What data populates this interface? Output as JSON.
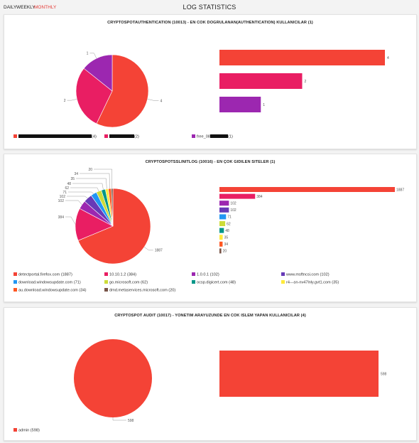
{
  "header": {
    "tabs": [
      {
        "label": "DAILY"
      },
      {
        "label": "WEEKLY"
      },
      {
        "label": "MONTHLY",
        "active": true
      }
    ],
    "title": "LOG STATISTICS"
  },
  "cards": [
    {
      "title": "CRYPTOSPOTAUTHENTICATION (10013) - EN COK DOGRULANAN(AUTHENTICATION) KULLANICILAR (1)",
      "legend": [
        {
          "suffix": "(4)",
          "color": "#f44336"
        },
        {
          "suffix": "(2)",
          "color": "#e91e63"
        },
        {
          "prefix": "free_08",
          "suffix": "(1)",
          "color": "#9c27b0"
        }
      ]
    },
    {
      "title": "CRYPTOSPOTSSLINITLOG (10016) - EN ÇOK GIDILEN SITELER (1)",
      "legend": [
        {
          "text": "detectportal.firefox.com (1887)",
          "color": "#f44336"
        },
        {
          "text": "10.10.1.2 (384)",
          "color": "#e91e63"
        },
        {
          "text": "1.0.0.1 (102)",
          "color": "#9c27b0"
        },
        {
          "text": "www.msftncsi.com (102)",
          "color": "#673ab7"
        },
        {
          "text": "download.windowsupdate.com (71)",
          "color": "#2196f3"
        },
        {
          "text": "go.microsoft.com (62)",
          "color": "#cddc39"
        },
        {
          "text": "ocsp.digicert.com (48)",
          "color": "#009688"
        },
        {
          "text": "r4---sn-nv47lnly.gvt1.com (35)",
          "color": "#ffeb3b"
        },
        {
          "text": "au.download.windowsupdate.com (34)",
          "color": "#ff5722"
        },
        {
          "text": "dmd.metaservices.microsoft.com (20)",
          "color": "#795548"
        }
      ]
    },
    {
      "title": "CRYPTOSPOT AUDIT (10017) - YONETIM ARAYUZUNDE EN COK ISLEM YAPAN KULLANICILAR (4)",
      "legend": [
        {
          "text": "admin (598)",
          "color": "#f44336"
        }
      ]
    }
  ],
  "chart_data": [
    {
      "type": "pie",
      "labels": [
        "",
        "",
        "free_08"
      ],
      "values": [
        4,
        2,
        1
      ],
      "colors": [
        "#f44336",
        "#e91e63",
        "#9c27b0"
      ]
    },
    {
      "type": "bar",
      "orientation": "horizontal",
      "values": [
        4,
        2,
        1
      ],
      "data_labels": [
        "4",
        "2",
        "1"
      ],
      "colors": [
        "#f44336",
        "#e91e63",
        "#9c27b0"
      ]
    },
    {
      "type": "pie",
      "labels": [
        "detectportal.firefox.com",
        "10.10.1.2",
        "1.0.0.1",
        "www.msftncsi.com",
        "download.windowsupdate.com",
        "go.microsoft.com",
        "ocsp.digicert.com",
        "r4---sn-nv47lnly.gvt1.com",
        "au.download.windowsupdate.com",
        "dmd.metaservices.microsoft.com"
      ],
      "values": [
        1887,
        384,
        102,
        102,
        71,
        62,
        48,
        35,
        34,
        20
      ],
      "colors": [
        "#f44336",
        "#e91e63",
        "#9c27b0",
        "#673ab7",
        "#2196f3",
        "#cddc39",
        "#009688",
        "#ffeb3b",
        "#ff5722",
        "#795548"
      ]
    },
    {
      "type": "bar",
      "orientation": "horizontal",
      "values": [
        1887,
        384,
        102,
        102,
        71,
        62,
        48,
        35,
        34,
        20
      ],
      "data_labels": [
        "1887",
        "384",
        "102",
        "102",
        "71",
        "62",
        "48",
        "35",
        "34",
        "20"
      ],
      "colors": [
        "#f44336",
        "#e91e63",
        "#9c27b0",
        "#673ab7",
        "#2196f3",
        "#cddc39",
        "#009688",
        "#ffeb3b",
        "#ff5722",
        "#795548"
      ]
    },
    {
      "type": "pie",
      "labels": [
        "admin"
      ],
      "values": [
        598
      ],
      "colors": [
        "#f44336"
      ]
    },
    {
      "type": "bar",
      "orientation": "horizontal",
      "values": [
        598
      ],
      "data_labels": [
        "598"
      ],
      "colors": [
        "#f44336"
      ]
    }
  ]
}
